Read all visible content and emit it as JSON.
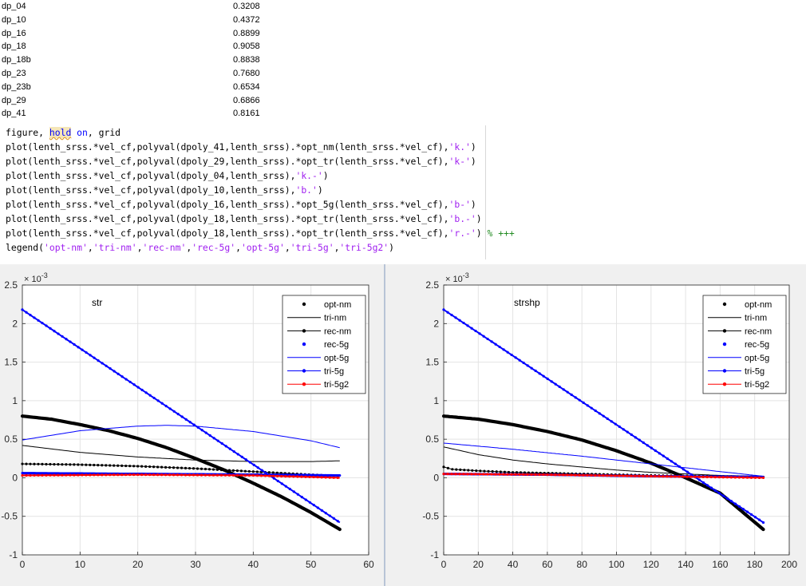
{
  "variables": [
    {
      "name": "dp_04",
      "value": "0.3208"
    },
    {
      "name": "dp_10",
      "value": "0.4372"
    },
    {
      "name": "dp_16",
      "value": "0.8899"
    },
    {
      "name": "dp_18",
      "value": "0.9058"
    },
    {
      "name": "dp_18b",
      "value": "0.8838"
    },
    {
      "name": "dp_23",
      "value": "0.7680"
    },
    {
      "name": "dp_23b",
      "value": "0.6534"
    },
    {
      "name": "dp_29",
      "value": "0.6866"
    },
    {
      "name": "dp_41",
      "value": "0.8161"
    }
  ],
  "code": {
    "line1": {
      "a": "figure, ",
      "hold": "hold",
      "b": " ",
      "on": "on",
      "c": ", grid"
    },
    "lines": [
      {
        "pre": "plot(lenth_srss.*vel_cf,polyval(dpoly_41,lenth_srss).*opt_nm(lenth_srss.*vel_cf),",
        "str": "'k.'",
        "post": ")"
      },
      {
        "pre": "plot(lenth_srss.*vel_cf,polyval(dpoly_29,lenth_srss).*opt_tr(lenth_srss.*vel_cf),",
        "str": "'k-'",
        "post": ")"
      },
      {
        "pre": "plot(lenth_srss.*vel_cf,polyval(dpoly_04,lenth_srss),",
        "str": "'k.-'",
        "post": ")"
      },
      {
        "pre": "plot(lenth_srss.*vel_cf,polyval(dpoly_10,lenth_srss),",
        "str": "'b.'",
        "post": ")"
      },
      {
        "pre": "plot(lenth_srss.*vel_cf,polyval(dpoly_16,lenth_srss).*opt_5g(lenth_srss.*vel_cf),",
        "str": "'b-'",
        "post": ")"
      },
      {
        "pre": "plot(lenth_srss.*vel_cf,polyval(dpoly_18,lenth_srss).*opt_tr(lenth_srss.*vel_cf),",
        "str": "'b.-'",
        "post": ")"
      },
      {
        "pre": "plot(lenth_srss.*vel_cf,polyval(dpoly_18,lenth_srss).*opt_tr(lenth_srss.*vel_cf),",
        "str": "'r.-'",
        "post": ") ",
        "cmt": "% +++"
      }
    ],
    "legend_line": {
      "pre": "legend(",
      "items": [
        "'opt-nm'",
        "'tri-nm'",
        "'rec-nm'",
        "'rec-5g'",
        "'opt-5g'",
        "'tri-5g'",
        "'tri-5g2'"
      ],
      "post": ")"
    }
  },
  "chart_data": [
    {
      "type": "line",
      "title": "str",
      "exponent_label": "× 10^-3",
      "xlim": [
        0,
        60
      ],
      "ylim": [
        -1,
        2.5
      ],
      "xticks": [
        "0",
        "10",
        "20",
        "30",
        "40",
        "50",
        "60"
      ],
      "yticks": [
        "-1",
        "-0.5",
        "0",
        "0.5",
        "1",
        "1.5",
        "2",
        "2.5"
      ],
      "grid": true,
      "legend_position": "top-right",
      "series": [
        {
          "name": "opt-nm",
          "style": "k.",
          "color": "#000000",
          "points": [
            [
              0,
              0.8
            ],
            [
              5,
              0.76
            ],
            [
              10,
              0.69
            ],
            [
              15,
              0.61
            ],
            [
              20,
              0.51
            ],
            [
              25,
              0.39
            ],
            [
              30,
              0.25
            ],
            [
              35,
              0.1
            ],
            [
              40,
              -0.07
            ],
            [
              45,
              -0.25
            ],
            [
              50,
              -0.45
            ],
            [
              55,
              -0.67
            ]
          ]
        },
        {
          "name": "tri-nm",
          "style": "k-",
          "color": "#000000",
          "points": [
            [
              0,
              0.42
            ],
            [
              10,
              0.33
            ],
            [
              20,
              0.27
            ],
            [
              30,
              0.23
            ],
            [
              40,
              0.21
            ],
            [
              50,
              0.21
            ],
            [
              55,
              0.22
            ]
          ]
        },
        {
          "name": "rec-nm",
          "style": "k.-",
          "color": "#000000",
          "points": [
            [
              0,
              0.18
            ],
            [
              10,
              0.17
            ],
            [
              20,
              0.15
            ],
            [
              30,
              0.12
            ],
            [
              40,
              0.08
            ],
            [
              50,
              0.04
            ],
            [
              55,
              0.02
            ]
          ]
        },
        {
          "name": "rec-5g",
          "style": "b.",
          "color": "#0000ff",
          "points": [
            [
              0,
              0.06
            ],
            [
              20,
              0.05
            ],
            [
              40,
              0.04
            ],
            [
              55,
              0.03
            ]
          ]
        },
        {
          "name": "opt-5g",
          "style": "b-",
          "color": "#0000ff",
          "points": [
            [
              0,
              0.49
            ],
            [
              10,
              0.61
            ],
            [
              20,
              0.67
            ],
            [
              25,
              0.68
            ],
            [
              30,
              0.67
            ],
            [
              40,
              0.6
            ],
            [
              50,
              0.48
            ],
            [
              55,
              0.39
            ]
          ]
        },
        {
          "name": "tri-5g",
          "style": "b.-",
          "color": "#0000ff",
          "points": [
            [
              0,
              2.18
            ],
            [
              55,
              -0.58
            ]
          ]
        },
        {
          "name": "tri-5g2",
          "style": "r.-",
          "color": "#ff0000",
          "points": [
            [
              0,
              0.03
            ],
            [
              20,
              0.04
            ],
            [
              40,
              0.03
            ],
            [
              55,
              0.0
            ]
          ]
        }
      ]
    },
    {
      "type": "line",
      "title": "strshp",
      "exponent_label": "× 10^-3",
      "xlim": [
        0,
        200
      ],
      "ylim": [
        -1,
        2.5
      ],
      "xticks": [
        "0",
        "20",
        "40",
        "60",
        "80",
        "100",
        "120",
        "140",
        "160",
        "180",
        "200"
      ],
      "yticks": [
        "-1",
        "-0.5",
        "0",
        "0.5",
        "1",
        "1.5",
        "2",
        "2.5"
      ],
      "grid": true,
      "legend_position": "top-right",
      "series": [
        {
          "name": "opt-nm",
          "style": "k.",
          "color": "#000000",
          "points": [
            [
              0,
              0.8
            ],
            [
              20,
              0.76
            ],
            [
              40,
              0.69
            ],
            [
              60,
              0.6
            ],
            [
              80,
              0.49
            ],
            [
              100,
              0.35
            ],
            [
              120,
              0.19
            ],
            [
              140,
              0.0
            ],
            [
              160,
              -0.2
            ],
            [
              185,
              -0.67
            ]
          ]
        },
        {
          "name": "tri-nm",
          "style": "k-",
          "color": "#000000",
          "points": [
            [
              0,
              0.4
            ],
            [
              20,
              0.3
            ],
            [
              40,
              0.23
            ],
            [
              60,
              0.18
            ],
            [
              80,
              0.14
            ],
            [
              100,
              0.1
            ],
            [
              120,
              0.07
            ],
            [
              140,
              0.05
            ],
            [
              160,
              0.03
            ],
            [
              185,
              0.02
            ]
          ]
        },
        {
          "name": "rec-nm",
          "style": "k.-",
          "color": "#000000",
          "points": [
            [
              0,
              0.14
            ],
            [
              5,
              0.11
            ],
            [
              20,
              0.09
            ],
            [
              40,
              0.07
            ],
            [
              80,
              0.05
            ],
            [
              120,
              0.03
            ],
            [
              185,
              0.01
            ]
          ]
        },
        {
          "name": "rec-5g",
          "style": "b.",
          "color": "#0000ff",
          "points": [
            [
              0,
              0.05
            ],
            [
              60,
              0.04
            ],
            [
              120,
              0.02
            ],
            [
              185,
              0.01
            ]
          ]
        },
        {
          "name": "opt-5g",
          "style": "b-",
          "color": "#0000ff",
          "points": [
            [
              0,
              0.45
            ],
            [
              40,
              0.37
            ],
            [
              80,
              0.28
            ],
            [
              120,
              0.18
            ],
            [
              160,
              0.08
            ],
            [
              185,
              0.02
            ]
          ]
        },
        {
          "name": "tri-5g",
          "style": "b.-",
          "color": "#0000ff",
          "points": [
            [
              0,
              2.18
            ],
            [
              185,
              -0.58
            ]
          ]
        },
        {
          "name": "tri-5g2",
          "style": "r.-",
          "color": "#ff0000",
          "points": [
            [
              0,
              0.05
            ],
            [
              60,
              0.04
            ],
            [
              120,
              0.02
            ],
            [
              185,
              0.0
            ]
          ]
        }
      ]
    }
  ]
}
